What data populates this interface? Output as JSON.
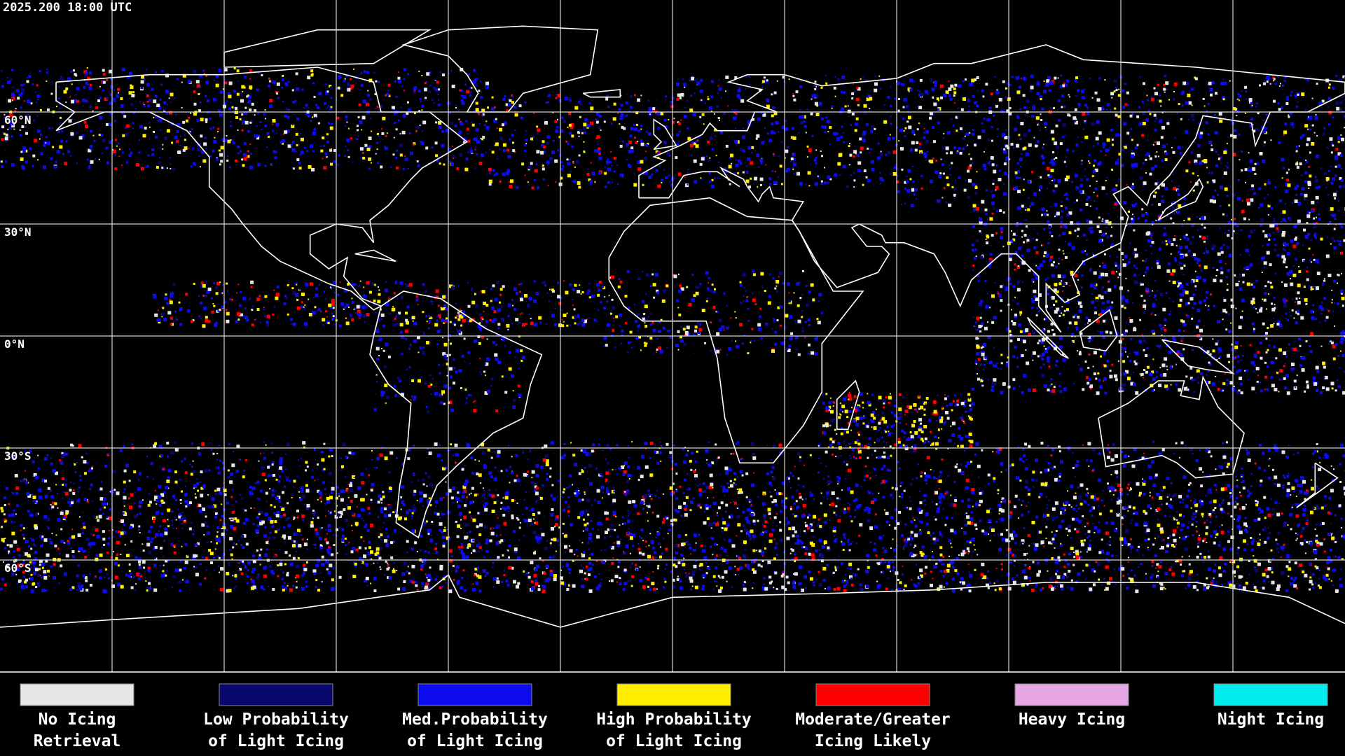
{
  "header": {
    "title": "2025.200 18:00 UTC"
  },
  "map": {
    "latitude_labels": [
      "60°N",
      "30°N",
      "0°N",
      "30°S",
      "60°S"
    ]
  },
  "legend": {
    "items": [
      {
        "label": [
          "No Icing",
          "Retrieval"
        ],
        "color": "#e6e6e6"
      },
      {
        "label": [
          "Low Probability",
          "of Light Icing"
        ],
        "color": "#08086e"
      },
      {
        "label": [
          "Med.Probability",
          "of Light Icing"
        ],
        "color": "#0c0cee"
      },
      {
        "label": [
          "High Probability",
          "of Light Icing"
        ],
        "color": "#ffee00"
      },
      {
        "label": [
          "Moderate/Greater",
          "Icing Likely"
        ],
        "color": "#ff0000"
      },
      {
        "label": [
          "Heavy Icing"
        ],
        "color": "#e6a6e6"
      },
      {
        "label": [
          "Night Icing"
        ],
        "color": "#00ecec"
      }
    ]
  }
}
